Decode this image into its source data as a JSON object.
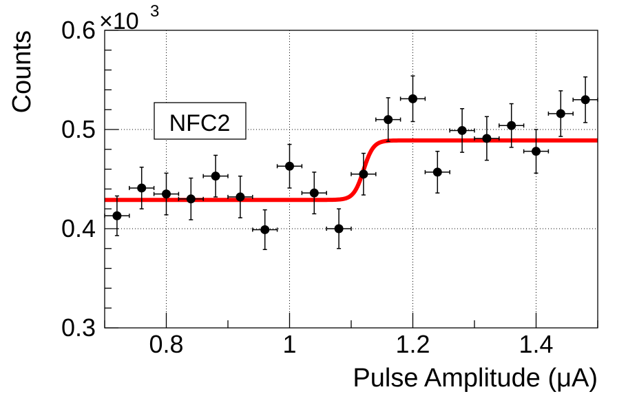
{
  "chart_data": {
    "type": "scatter",
    "title": "",
    "xlabel": "Pulse Amplitude (μA)",
    "ylabel": "Counts",
    "xlim": [
      0.7,
      1.5
    ],
    "ylim": [
      300,
      600
    ],
    "y_multiplier": "×10",
    "y_multiplier_exponent": "3",
    "x_tick_labels": [
      "0.8",
      "1",
      "1.2",
      "1.4"
    ],
    "y_tick_labels": [
      "0.3",
      "0.4",
      "0.5",
      "0.6"
    ],
    "x_ticks": [
      0.8,
      1.0,
      1.2,
      1.4
    ],
    "y_ticks": [
      300,
      400,
      500,
      600
    ],
    "grid": true,
    "legend_text": "NFC2",
    "series": [
      {
        "name": "data",
        "marker": "circle",
        "color": "#000000",
        "points": [
          {
            "x": 0.72,
            "y": 413,
            "xerr": 0.02,
            "yerr": 20
          },
          {
            "x": 0.76,
            "y": 441,
            "xerr": 0.02,
            "yerr": 21
          },
          {
            "x": 0.8,
            "y": 435,
            "xerr": 0.02,
            "yerr": 21
          },
          {
            "x": 0.84,
            "y": 430,
            "xerr": 0.02,
            "yerr": 21
          },
          {
            "x": 0.88,
            "y": 453,
            "xerr": 0.02,
            "yerr": 21
          },
          {
            "x": 0.92,
            "y": 432,
            "xerr": 0.02,
            "yerr": 21
          },
          {
            "x": 0.96,
            "y": 399,
            "xerr": 0.02,
            "yerr": 20
          },
          {
            "x": 1.0,
            "y": 463,
            "xerr": 0.02,
            "yerr": 22
          },
          {
            "x": 1.04,
            "y": 436,
            "xerr": 0.02,
            "yerr": 21
          },
          {
            "x": 1.08,
            "y": 400,
            "xerr": 0.02,
            "yerr": 20
          },
          {
            "x": 1.12,
            "y": 455,
            "xerr": 0.02,
            "yerr": 21
          },
          {
            "x": 1.16,
            "y": 510,
            "xerr": 0.02,
            "yerr": 22
          },
          {
            "x": 1.2,
            "y": 531,
            "xerr": 0.02,
            "yerr": 23
          },
          {
            "x": 1.24,
            "y": 457,
            "xerr": 0.02,
            "yerr": 21
          },
          {
            "x": 1.28,
            "y": 499,
            "xerr": 0.02,
            "yerr": 22
          },
          {
            "x": 1.32,
            "y": 491,
            "xerr": 0.02,
            "yerr": 22
          },
          {
            "x": 1.36,
            "y": 504,
            "xerr": 0.02,
            "yerr": 22
          },
          {
            "x": 1.4,
            "y": 478,
            "xerr": 0.02,
            "yerr": 22
          },
          {
            "x": 1.44,
            "y": 516,
            "xerr": 0.02,
            "yerr": 23
          },
          {
            "x": 1.48,
            "y": 530,
            "xerr": 0.02,
            "yerr": 23
          }
        ]
      },
      {
        "name": "fit",
        "type": "line",
        "color": "#ff0000",
        "model": "sigmoid step",
        "low_level": 429,
        "high_level": 489,
        "center": 1.12,
        "width": 0.008,
        "x_range": [
          0.7,
          1.5
        ]
      }
    ]
  }
}
